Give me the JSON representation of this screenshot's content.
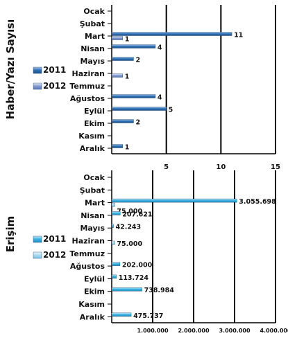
{
  "chart_data": [
    {
      "type": "bar",
      "orientation": "horizontal",
      "ylabel": "Haber/Yazı Sayısı",
      "categories": [
        "Ocak",
        "Şubat",
        "Mart",
        "Nisan",
        "Mayıs",
        "Haziran",
        "Temmuz",
        "Ağustos",
        "Eylül",
        "Ekim",
        "Kasım",
        "Aralık"
      ],
      "series": [
        {
          "name": "2011",
          "values": [
            null,
            null,
            11,
            4,
            2,
            null,
            null,
            4,
            5,
            2,
            null,
            1
          ],
          "color": "#2e73b8"
        },
        {
          "name": "2012",
          "values": [
            null,
            null,
            1,
            null,
            null,
            1,
            null,
            null,
            null,
            null,
            null,
            null
          ],
          "color": "#7f97cf"
        }
      ],
      "data_labels": [
        "",
        "",
        "11|1",
        "4",
        "2",
        "1",
        "",
        "4",
        "5",
        "2",
        "",
        "1"
      ],
      "xlim": [
        0,
        15
      ],
      "xticks": [
        "5",
        "10",
        "15"
      ],
      "grid": true,
      "legend": "left"
    },
    {
      "type": "bar",
      "orientation": "horizontal",
      "ylabel": "Erişim",
      "categories": [
        "Ocak",
        "Şubat",
        "Mart",
        "Nisan",
        "Mayıs",
        "Haziran",
        "Temmuz",
        "Ağustos",
        "Eylül",
        "Ekim",
        "Kasım",
        "Aralık"
      ],
      "series": [
        {
          "name": "2011",
          "values": [
            null,
            null,
            3055698,
            207621,
            42243,
            null,
            null,
            202000,
            113724,
            738984,
            null,
            475737
          ],
          "color": "#39b4e4"
        },
        {
          "name": "2012",
          "values": [
            null,
            null,
            75000,
            null,
            null,
            75000,
            null,
            null,
            null,
            null,
            null,
            null
          ],
          "color": "#a6d8ef"
        }
      ],
      "data_labels": [
        "",
        "",
        "3.055.698|75.000",
        "207.621",
        "42.243",
        "75.000",
        "",
        "202.000",
        "113.724",
        "738.984",
        "",
        "475.737"
      ],
      "xlim": [
        0,
        4000000
      ],
      "xticks": [
        "1.000.000",
        "2.000.000",
        "3.000.000",
        "4.000.000"
      ],
      "grid": true,
      "legend": "left"
    }
  ]
}
